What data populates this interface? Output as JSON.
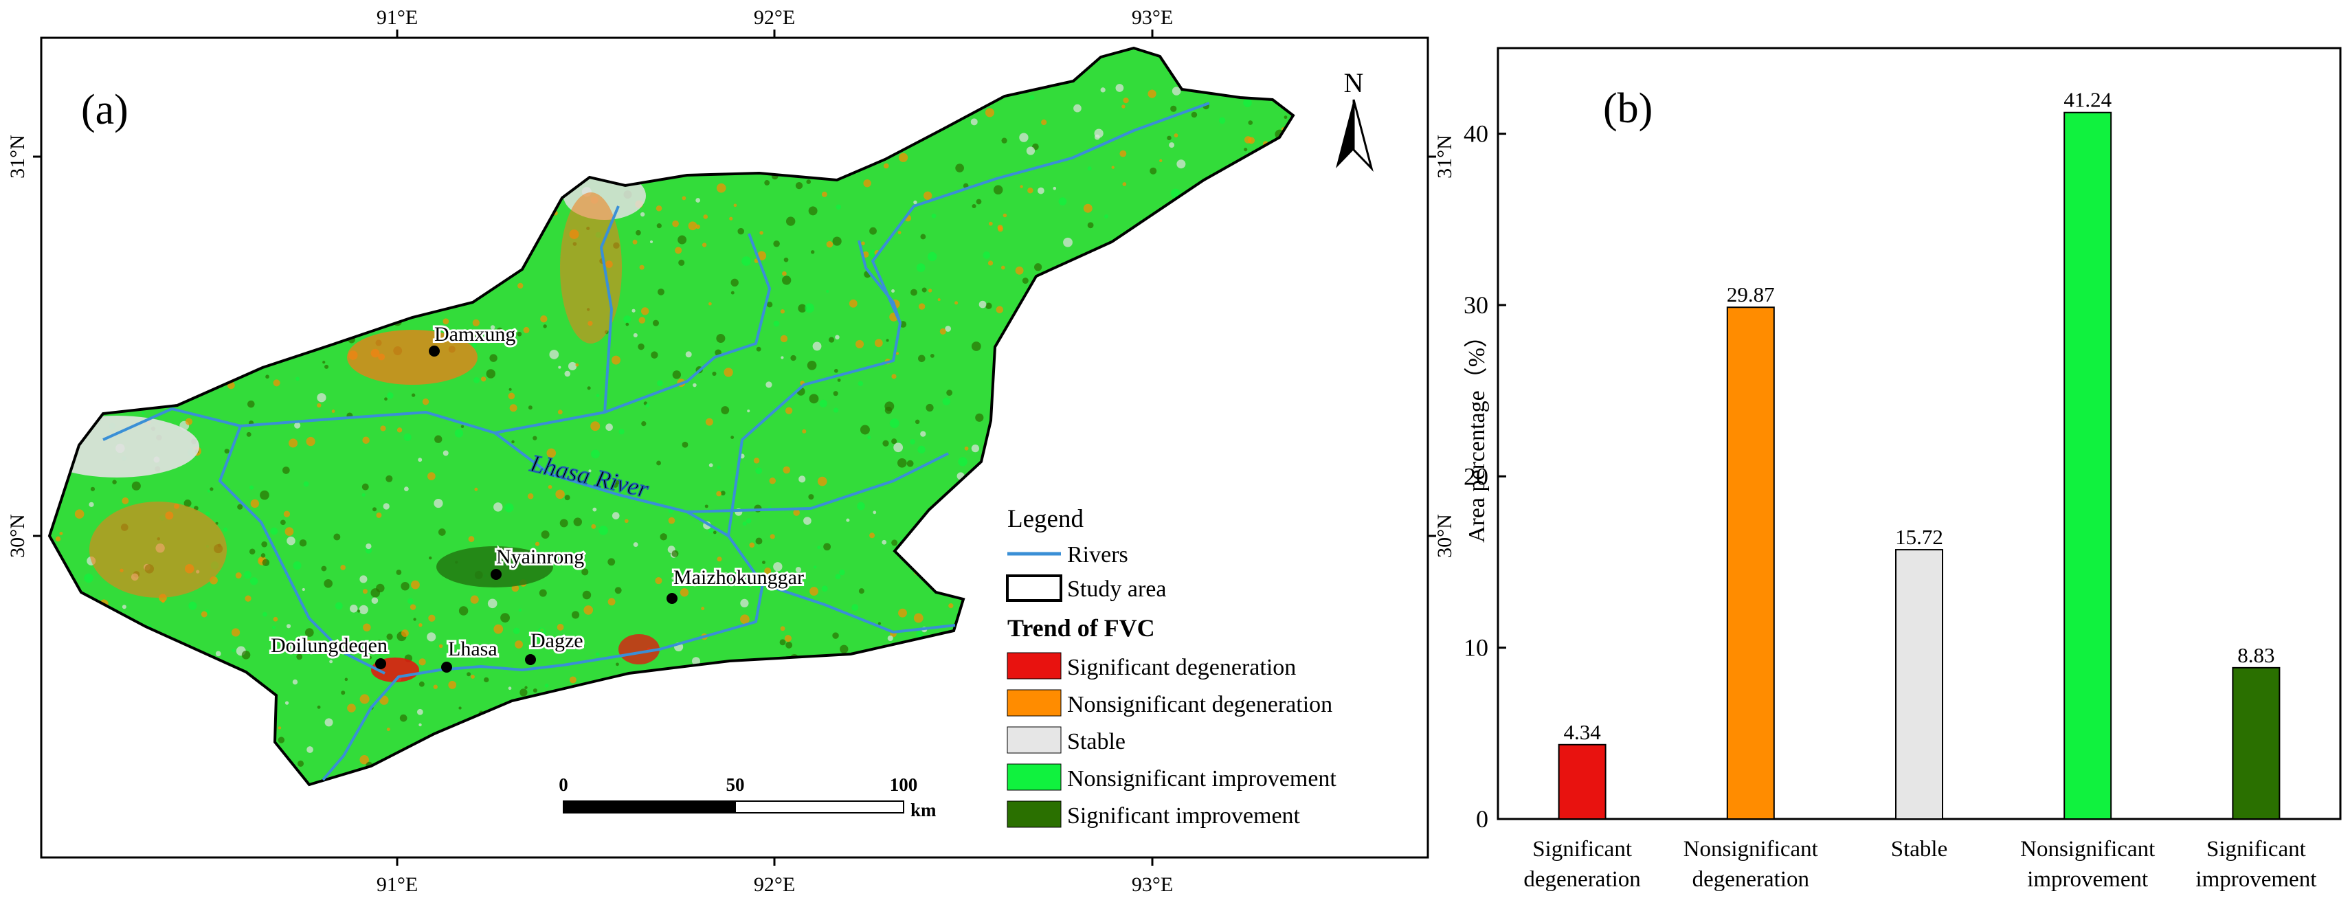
{
  "panel_a": {
    "label": "(a)",
    "lon_ticks": [
      "91°E",
      "92°E",
      "93°E"
    ],
    "lat_ticks": [
      "31°N",
      "30°N"
    ],
    "north": "N",
    "river_label": "Lhasa River",
    "places": [
      "Damxung",
      "Nyainrong",
      "Maizhokunggar",
      "Doilungdeqen",
      "Lhasa",
      "Dagze"
    ],
    "scale": {
      "ticks": [
        "0",
        "50",
        "100"
      ],
      "unit": "km"
    },
    "legend": {
      "title": "Legend",
      "rivers": "Rivers",
      "study_area": "Study area",
      "trend_title": "Trend of FVC",
      "classes": [
        {
          "label": "Significant degeneration",
          "color": "#e8120f"
        },
        {
          "label": "Nonsignificant degeneration",
          "color": "#ff8c00"
        },
        {
          "label": "Stable",
          "color": "#e6e6e6"
        },
        {
          "label": "Nonsignificant improvement",
          "color": "#10f23e"
        },
        {
          "label": "Significant improvement",
          "color": "#2a7000"
        }
      ]
    }
  },
  "chart_data": {
    "type": "bar",
    "panel_label": "(b)",
    "categories": [
      [
        "Significant",
        "degeneration"
      ],
      [
        "Nonsignificant",
        "degeneration"
      ],
      [
        "Stable"
      ],
      [
        "Nonsignificant",
        "improvement"
      ],
      [
        "Significant",
        "improvement"
      ]
    ],
    "values": [
      4.34,
      29.87,
      15.72,
      41.24,
      8.83
    ],
    "value_labels": [
      "4.34",
      "29.87",
      "15.72",
      "41.24",
      "8.83"
    ],
    "colors": [
      "#e8120f",
      "#ff8c00",
      "#e6e6e6",
      "#10f23e",
      "#2a7000"
    ],
    "ylabel": "Area percentage（%）",
    "ylim": [
      0,
      45
    ],
    "yticks": [
      0,
      10,
      20,
      30,
      40
    ],
    "grid": false
  }
}
